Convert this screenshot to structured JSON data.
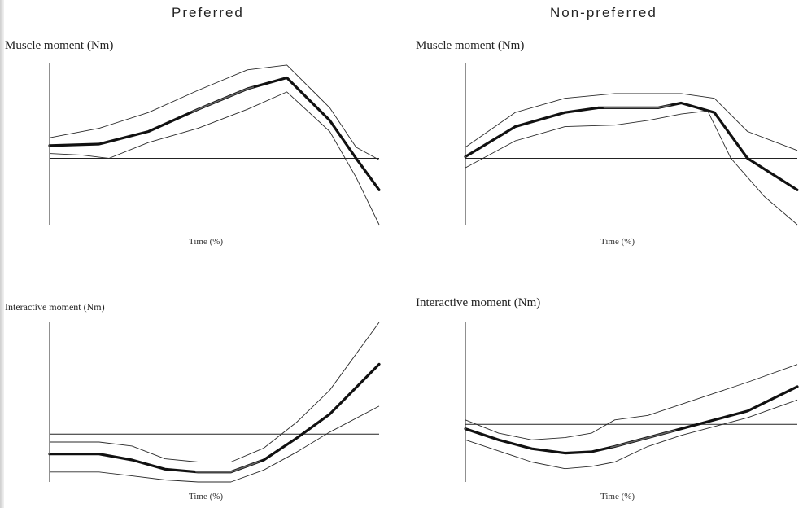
{
  "columns": {
    "left_title": "Preferred",
    "right_title": "Non-preferred"
  },
  "colors": {
    "mean": "#111111",
    "mean_highlight": "#6f6f6f",
    "band": "#2a2a2a",
    "band_highlight": "#8a8a8a",
    "axis": "#222222"
  },
  "chart_data": [
    {
      "type": "line",
      "panel": "preferred-muscle",
      "ylabel": "Muscle moment (Nm)",
      "xlabel": "Time (%)",
      "xlim": [
        0,
        100
      ],
      "ylim": [
        -2.1,
        3.0
      ],
      "grid": false,
      "series": [
        {
          "role": "mean",
          "x": [
            0,
            15,
            30,
            45,
            60,
            72,
            85,
            93,
            100
          ],
          "y": [
            0.4,
            0.45,
            0.85,
            1.55,
            2.2,
            2.55,
            1.2,
            0.0,
            -1.0
          ]
        },
        {
          "role": "upper",
          "x": [
            0,
            15,
            30,
            45,
            60,
            72,
            85,
            93,
            100
          ],
          "y": [
            0.65,
            0.95,
            1.45,
            2.15,
            2.8,
            2.95,
            1.6,
            0.35,
            -0.05
          ]
        },
        {
          "role": "lower",
          "x": [
            0,
            10,
            18,
            30,
            45,
            60,
            72,
            85,
            93,
            100
          ],
          "y": [
            0.15,
            0.1,
            0.0,
            0.5,
            0.95,
            1.55,
            2.1,
            0.85,
            -0.6,
            -2.1
          ]
        }
      ]
    },
    {
      "type": "line",
      "panel": "non-preferred-muscle",
      "ylabel": "Muscle moment (Nm)",
      "xlabel": "Time (%)",
      "xlim": [
        0,
        100
      ],
      "ylim": [
        -2.1,
        3.0
      ],
      "grid": false,
      "series": [
        {
          "role": "mean",
          "x": [
            0,
            15,
            30,
            40,
            50,
            58,
            65,
            75,
            85,
            100
          ],
          "y": [
            0.05,
            1.0,
            1.45,
            1.6,
            1.6,
            1.6,
            1.75,
            1.45,
            0.0,
            -1.0
          ]
        },
        {
          "role": "upper",
          "x": [
            0,
            15,
            30,
            45,
            55,
            65,
            75,
            85,
            100
          ],
          "y": [
            0.35,
            1.45,
            1.9,
            2.05,
            2.05,
            2.05,
            1.9,
            0.85,
            0.25
          ]
        },
        {
          "role": "lower",
          "x": [
            0,
            15,
            30,
            45,
            55,
            65,
            73,
            80,
            90,
            100
          ],
          "y": [
            -0.3,
            0.55,
            1.0,
            1.05,
            1.2,
            1.4,
            1.5,
            0.0,
            -1.2,
            -2.1
          ]
        }
      ]
    },
    {
      "type": "line",
      "panel": "preferred-interactive",
      "ylabel": "Interactive moment (Nm)",
      "xlabel": "Time (%)",
      "xlim": [
        0,
        100
      ],
      "ylim": [
        -1.2,
        2.8
      ],
      "grid": false,
      "series": [
        {
          "role": "mean",
          "x": [
            0,
            15,
            25,
            35,
            45,
            55,
            65,
            75,
            85,
            100
          ],
          "y": [
            -0.5,
            -0.5,
            -0.65,
            -0.88,
            -0.95,
            -0.95,
            -0.65,
            -0.1,
            0.5,
            1.75
          ]
        },
        {
          "role": "upper",
          "x": [
            0,
            15,
            25,
            35,
            45,
            55,
            65,
            75,
            85,
            100
          ],
          "y": [
            -0.2,
            -0.2,
            -0.3,
            -0.62,
            -0.7,
            -0.7,
            -0.35,
            0.3,
            1.1,
            2.8
          ]
        },
        {
          "role": "lower",
          "x": [
            0,
            15,
            25,
            35,
            45,
            55,
            65,
            75,
            85,
            100
          ],
          "y": [
            -0.95,
            -0.95,
            -1.05,
            -1.15,
            -1.2,
            -1.2,
            -0.9,
            -0.45,
            0.05,
            0.7
          ]
        }
      ]
    },
    {
      "type": "line",
      "panel": "non-preferred-interactive",
      "ylabel": "Interactive moment (Nm)",
      "xlabel": "Time (%)",
      "xlim": [
        0,
        100
      ],
      "ylim": [
        -1.3,
        2.3
      ],
      "grid": false,
      "series": [
        {
          "role": "mean",
          "x": [
            0,
            10,
            20,
            30,
            38,
            45,
            55,
            65,
            75,
            85,
            100
          ],
          "y": [
            -0.1,
            -0.35,
            -0.55,
            -0.65,
            -0.62,
            -0.5,
            -0.3,
            -0.1,
            0.1,
            0.3,
            0.85
          ]
        },
        {
          "role": "upper",
          "x": [
            0,
            10,
            20,
            30,
            38,
            45,
            55,
            65,
            75,
            85,
            100
          ],
          "y": [
            0.1,
            -0.2,
            -0.35,
            -0.3,
            -0.2,
            0.1,
            0.2,
            0.45,
            0.7,
            0.95,
            1.35
          ]
        },
        {
          "role": "lower",
          "x": [
            0,
            10,
            20,
            30,
            38,
            45,
            55,
            65,
            75,
            85,
            100
          ],
          "y": [
            -0.35,
            -0.6,
            -0.85,
            -1.0,
            -0.95,
            -0.85,
            -0.5,
            -0.25,
            -0.05,
            0.15,
            0.55
          ]
        }
      ]
    }
  ]
}
